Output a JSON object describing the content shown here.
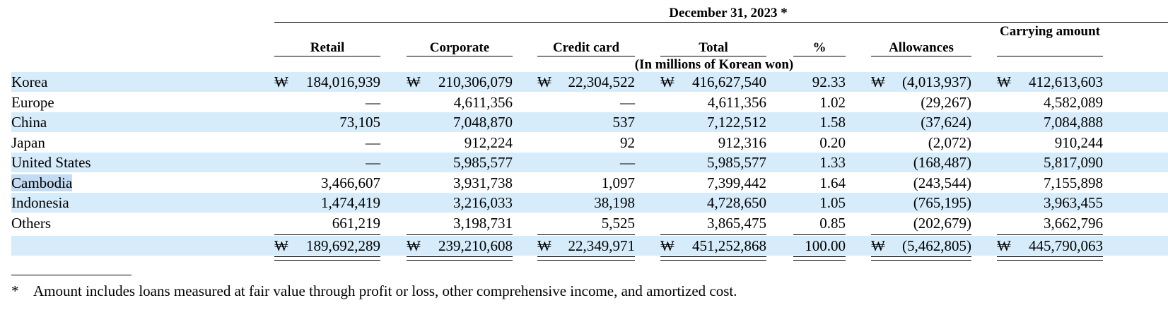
{
  "header": {
    "period": "December 31, 2023 *",
    "units": "(In millions of Korean won)",
    "columns": [
      "Retail",
      "Corporate",
      "Credit card",
      "Total",
      "%",
      "Allowances",
      "Carrying amount"
    ]
  },
  "currency_symbol": "₩",
  "rows": [
    {
      "label": "Korea",
      "values": [
        "184,016,939",
        "210,306,079",
        "22,304,522",
        "416,627,540",
        "92.33",
        "(4,013,937)",
        "412,613,603"
      ],
      "currency": true
    },
    {
      "label": "Europe",
      "values": [
        "—",
        "4,611,356",
        "—",
        "4,611,356",
        "1.02",
        "(29,267)",
        "4,582,089"
      ]
    },
    {
      "label": "China",
      "values": [
        "73,105",
        "7,048,870",
        "537",
        "7,122,512",
        "1.58",
        "(37,624)",
        "7,084,888"
      ]
    },
    {
      "label": "Japan",
      "values": [
        "—",
        "912,224",
        "92",
        "912,316",
        "0.20",
        "(2,072)",
        "910,244"
      ]
    },
    {
      "label": "United States",
      "values": [
        "—",
        "5,985,577",
        "—",
        "5,985,577",
        "1.33",
        "(168,487)",
        "5,817,090"
      ]
    },
    {
      "label": "Cambodia",
      "values": [
        "3,466,607",
        "3,931,738",
        "1,097",
        "7,399,442",
        "1.64",
        "(243,544)",
        "7,155,898"
      ]
    },
    {
      "label": "Indonesia",
      "values": [
        "1,474,419",
        "3,216,033",
        "38,198",
        "4,728,650",
        "1.05",
        "(765,195)",
        "3,963,455"
      ]
    },
    {
      "label": "Others",
      "values": [
        "661,219",
        "3,198,731",
        "5,525",
        "3,865,475",
        "0.85",
        "(202,679)",
        "3,662,796"
      ]
    }
  ],
  "total": {
    "label": "",
    "values": [
      "189,692,289",
      "239,210,608",
      "22,349,971",
      "451,252,868",
      "100.00",
      "(5,462,805)",
      "445,790,063"
    ]
  },
  "footnote": {
    "marker": "*",
    "text": "Amount includes loans measured at fair value through profit or loss, other comprehensive income, and amortized cost."
  }
}
